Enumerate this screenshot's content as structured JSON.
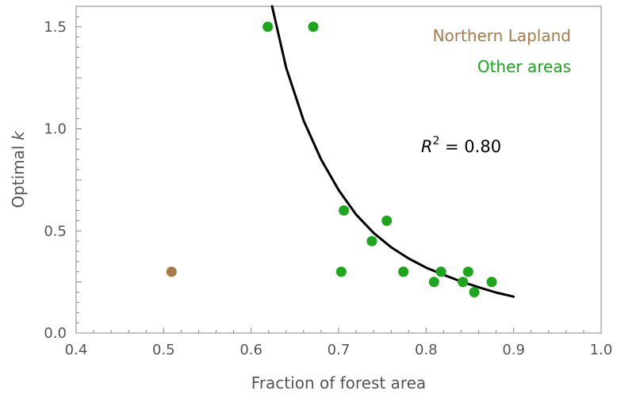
{
  "chart_data": {
    "type": "scatter",
    "xlabel": "Fraction of forest area",
    "ylabel_main": "Optimal ",
    "ylabel_italic": "k",
    "xlim": [
      0.4,
      1.0
    ],
    "ylim": [
      0.0,
      1.6
    ],
    "x_ticks": [
      0.4,
      0.5,
      0.6,
      0.7,
      0.8,
      0.9,
      1.0
    ],
    "x_tick_labels": [
      "0.4",
      "0.5",
      "0.6",
      "0.7",
      "0.8",
      "0.9",
      "1.0"
    ],
    "y_ticks": [
      0.0,
      0.5,
      1.0,
      1.5
    ],
    "y_tick_labels": [
      "0.0",
      "0.5",
      "1.0",
      "1.5"
    ],
    "legend_position": "top-right",
    "series": [
      {
        "name": "Northern Lapland",
        "color": "#a87a46",
        "points": [
          [
            0.509,
            0.3
          ]
        ]
      },
      {
        "name": "Other areas",
        "color": "#1ba61b",
        "points": [
          [
            0.619,
            1.5
          ],
          [
            0.671,
            1.5
          ],
          [
            0.706,
            0.6
          ],
          [
            0.703,
            0.3
          ],
          [
            0.738,
            0.45
          ],
          [
            0.755,
            0.55
          ],
          [
            0.774,
            0.3
          ],
          [
            0.809,
            0.25
          ],
          [
            0.817,
            0.3
          ],
          [
            0.842,
            0.25
          ],
          [
            0.848,
            0.3
          ],
          [
            0.855,
            0.2
          ],
          [
            0.875,
            0.25
          ]
        ]
      }
    ],
    "fit_curve": {
      "color": "#000000",
      "points": [
        [
          0.624,
          1.6
        ],
        [
          0.64,
          1.3
        ],
        [
          0.66,
          1.04
        ],
        [
          0.68,
          0.85
        ],
        [
          0.7,
          0.7
        ],
        [
          0.72,
          0.58
        ],
        [
          0.74,
          0.49
        ],
        [
          0.76,
          0.42
        ],
        [
          0.78,
          0.365
        ],
        [
          0.8,
          0.32
        ],
        [
          0.82,
          0.285
        ],
        [
          0.84,
          0.252
        ],
        [
          0.86,
          0.224
        ],
        [
          0.88,
          0.198
        ],
        [
          0.9,
          0.178
        ]
      ]
    },
    "annotation": {
      "r_symbol": "R",
      "superscript": "2",
      "text": " = 0.80",
      "x": 0.84,
      "y": 0.885
    }
  }
}
